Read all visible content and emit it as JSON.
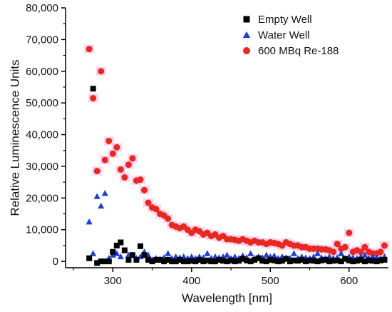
{
  "chart_data": {
    "type": "scatter",
    "xlabel": "Wavelength [nm]",
    "ylabel": "Relative Luminescence Units",
    "xlim": [
      240,
      650
    ],
    "ylim": [
      -2000,
      80000
    ],
    "x_ticks": [
      300,
      400,
      500,
      600
    ],
    "x_tick_labels": [
      "300",
      "400",
      "500",
      "600"
    ],
    "y_ticks": [
      0,
      10000,
      20000,
      30000,
      40000,
      50000,
      60000,
      70000,
      80000
    ],
    "y_tick_labels": [
      "0",
      "10,000",
      "20,000",
      "30,000",
      "40,000",
      "50,000",
      "60,000",
      "70,000",
      "80,000"
    ],
    "grid": false,
    "legend_position": "top-right",
    "series": [
      {
        "name": "Empty Well",
        "marker": "square",
        "color": "#000000",
        "points": [
          [
            270,
            1000
          ],
          [
            275,
            54500
          ],
          [
            280,
            -500
          ],
          [
            285,
            0
          ],
          [
            290,
            0
          ],
          [
            295,
            0
          ],
          [
            300,
            3000
          ],
          [
            305,
            5000
          ],
          [
            310,
            6000
          ],
          [
            315,
            3500
          ],
          [
            320,
            500
          ],
          [
            325,
            2000
          ],
          [
            330,
            500
          ],
          [
            335,
            4800
          ],
          [
            340,
            2000
          ],
          [
            345,
            500
          ],
          [
            350,
            0
          ],
          [
            355,
            500
          ],
          [
            360,
            500
          ],
          [
            365,
            0
          ],
          [
            370,
            500
          ],
          [
            375,
            0
          ],
          [
            380,
            0
          ],
          [
            385,
            500
          ],
          [
            390,
            0
          ],
          [
            395,
            0
          ],
          [
            400,
            200
          ],
          [
            405,
            0
          ],
          [
            410,
            500
          ],
          [
            415,
            0
          ],
          [
            420,
            300
          ],
          [
            425,
            0
          ],
          [
            430,
            0
          ],
          [
            435,
            500
          ],
          [
            440,
            200
          ],
          [
            445,
            0
          ],
          [
            450,
            300
          ],
          [
            455,
            0
          ],
          [
            460,
            200
          ],
          [
            465,
            800
          ],
          [
            470,
            300
          ],
          [
            475,
            0
          ],
          [
            480,
            500
          ],
          [
            485,
            1000
          ],
          [
            490,
            200
          ],
          [
            495,
            0
          ],
          [
            500,
            500
          ],
          [
            505,
            300
          ],
          [
            510,
            0
          ],
          [
            515,
            200
          ],
          [
            520,
            800
          ],
          [
            525,
            0
          ],
          [
            530,
            300
          ],
          [
            535,
            200
          ],
          [
            540,
            500
          ],
          [
            545,
            0
          ],
          [
            550,
            300
          ],
          [
            555,
            200
          ],
          [
            560,
            0
          ],
          [
            565,
            300
          ],
          [
            570,
            500
          ],
          [
            575,
            0
          ],
          [
            580,
            200
          ],
          [
            585,
            300
          ],
          [
            590,
            0
          ],
          [
            595,
            800
          ],
          [
            600,
            300
          ],
          [
            605,
            0
          ],
          [
            610,
            200
          ],
          [
            615,
            500
          ],
          [
            620,
            0
          ],
          [
            625,
            300
          ],
          [
            630,
            200
          ],
          [
            635,
            0
          ],
          [
            640,
            300
          ],
          [
            645,
            500
          ]
        ]
      },
      {
        "name": "Water Well",
        "marker": "triangle",
        "color": "#1f3fd1",
        "points": [
          [
            270,
            12500
          ],
          [
            275,
            2500
          ],
          [
            280,
            20500
          ],
          [
            285,
            17500
          ],
          [
            290,
            21500
          ],
          [
            295,
            1000
          ],
          [
            300,
            2000
          ],
          [
            305,
            2500
          ],
          [
            310,
            1500
          ],
          [
            315,
            3500
          ],
          [
            320,
            2000
          ],
          [
            325,
            2000
          ],
          [
            330,
            1000
          ],
          [
            335,
            1500
          ],
          [
            340,
            3000
          ],
          [
            345,
            2000
          ],
          [
            350,
            500
          ],
          [
            355,
            1000
          ],
          [
            360,
            800
          ],
          [
            365,
            1200
          ],
          [
            370,
            2500
          ],
          [
            375,
            1000
          ],
          [
            380,
            1500
          ],
          [
            385,
            1200
          ],
          [
            390,
            1500
          ],
          [
            395,
            1000
          ],
          [
            400,
            1500
          ],
          [
            405,
            1000
          ],
          [
            410,
            1500
          ],
          [
            415,
            1200
          ],
          [
            420,
            2500
          ],
          [
            425,
            1000
          ],
          [
            430,
            1500
          ],
          [
            435,
            1200
          ],
          [
            440,
            1500
          ],
          [
            445,
            2000
          ],
          [
            450,
            1000
          ],
          [
            455,
            1500
          ],
          [
            460,
            1000
          ],
          [
            465,
            1800
          ],
          [
            470,
            1200
          ],
          [
            475,
            2500
          ],
          [
            480,
            1000
          ],
          [
            485,
            1500
          ],
          [
            490,
            1200
          ],
          [
            495,
            2000
          ],
          [
            500,
            1500
          ],
          [
            505,
            1800
          ],
          [
            510,
            1000
          ],
          [
            515,
            1500
          ],
          [
            520,
            1200
          ],
          [
            525,
            1000
          ],
          [
            530,
            2500
          ],
          [
            535,
            1000
          ],
          [
            540,
            1500
          ],
          [
            545,
            1200
          ],
          [
            550,
            1000
          ],
          [
            555,
            1500
          ],
          [
            560,
            2500
          ],
          [
            565,
            1200
          ],
          [
            570,
            1000
          ],
          [
            575,
            1500
          ],
          [
            580,
            1000
          ],
          [
            585,
            1200
          ],
          [
            590,
            2500
          ],
          [
            595,
            1000
          ],
          [
            600,
            1500
          ],
          [
            605,
            1200
          ],
          [
            610,
            1000
          ],
          [
            615,
            1500
          ],
          [
            620,
            2000
          ],
          [
            625,
            1000
          ],
          [
            630,
            1500
          ],
          [
            635,
            1200
          ],
          [
            640,
            1000
          ],
          [
            645,
            1500
          ]
        ]
      },
      {
        "name": "600 MBq Re-188",
        "marker": "circle",
        "color": "#e8281e",
        "points": [
          [
            270,
            67000
          ],
          [
            275,
            51500
          ],
          [
            280,
            28500
          ],
          [
            285,
            60000
          ],
          [
            290,
            32000
          ],
          [
            295,
            38000
          ],
          [
            300,
            34000
          ],
          [
            305,
            36000
          ],
          [
            310,
            29000
          ],
          [
            315,
            26500
          ],
          [
            320,
            30500
          ],
          [
            325,
            32500
          ],
          [
            330,
            25500
          ],
          [
            335,
            25800
          ],
          [
            340,
            22500
          ],
          [
            345,
            18500
          ],
          [
            350,
            17000
          ],
          [
            355,
            16500
          ],
          [
            360,
            15000
          ],
          [
            365,
            14500
          ],
          [
            370,
            13500
          ],
          [
            375,
            11500
          ],
          [
            380,
            11000
          ],
          [
            385,
            10500
          ],
          [
            390,
            11000
          ],
          [
            395,
            10000
          ],
          [
            400,
            9000
          ],
          [
            405,
            10000
          ],
          [
            410,
            9500
          ],
          [
            415,
            8500
          ],
          [
            420,
            9000
          ],
          [
            425,
            8000
          ],
          [
            430,
            8500
          ],
          [
            435,
            7500
          ],
          [
            440,
            8000
          ],
          [
            445,
            7000
          ],
          [
            450,
            7000
          ],
          [
            455,
            6800
          ],
          [
            460,
            6500
          ],
          [
            465,
            7000
          ],
          [
            470,
            6500
          ],
          [
            475,
            6000
          ],
          [
            480,
            6500
          ],
          [
            485,
            6000
          ],
          [
            490,
            6000
          ],
          [
            495,
            5500
          ],
          [
            500,
            6000
          ],
          [
            505,
            5800
          ],
          [
            510,
            5500
          ],
          [
            515,
            5000
          ],
          [
            520,
            6000
          ],
          [
            525,
            5500
          ],
          [
            530,
            5000
          ],
          [
            535,
            5000
          ],
          [
            540,
            4500
          ],
          [
            545,
            4500
          ],
          [
            550,
            4000
          ],
          [
            555,
            4000
          ],
          [
            560,
            4000
          ],
          [
            565,
            3800
          ],
          [
            570,
            3800
          ],
          [
            575,
            3500
          ],
          [
            580,
            3000
          ],
          [
            585,
            5500
          ],
          [
            590,
            4000
          ],
          [
            595,
            4500
          ],
          [
            600,
            9000
          ],
          [
            605,
            3000
          ],
          [
            610,
            3500
          ],
          [
            615,
            3000
          ],
          [
            620,
            4500
          ],
          [
            625,
            3000
          ],
          [
            630,
            2500
          ],
          [
            635,
            2500
          ],
          [
            640,
            3000
          ],
          [
            645,
            5000
          ]
        ]
      }
    ]
  }
}
